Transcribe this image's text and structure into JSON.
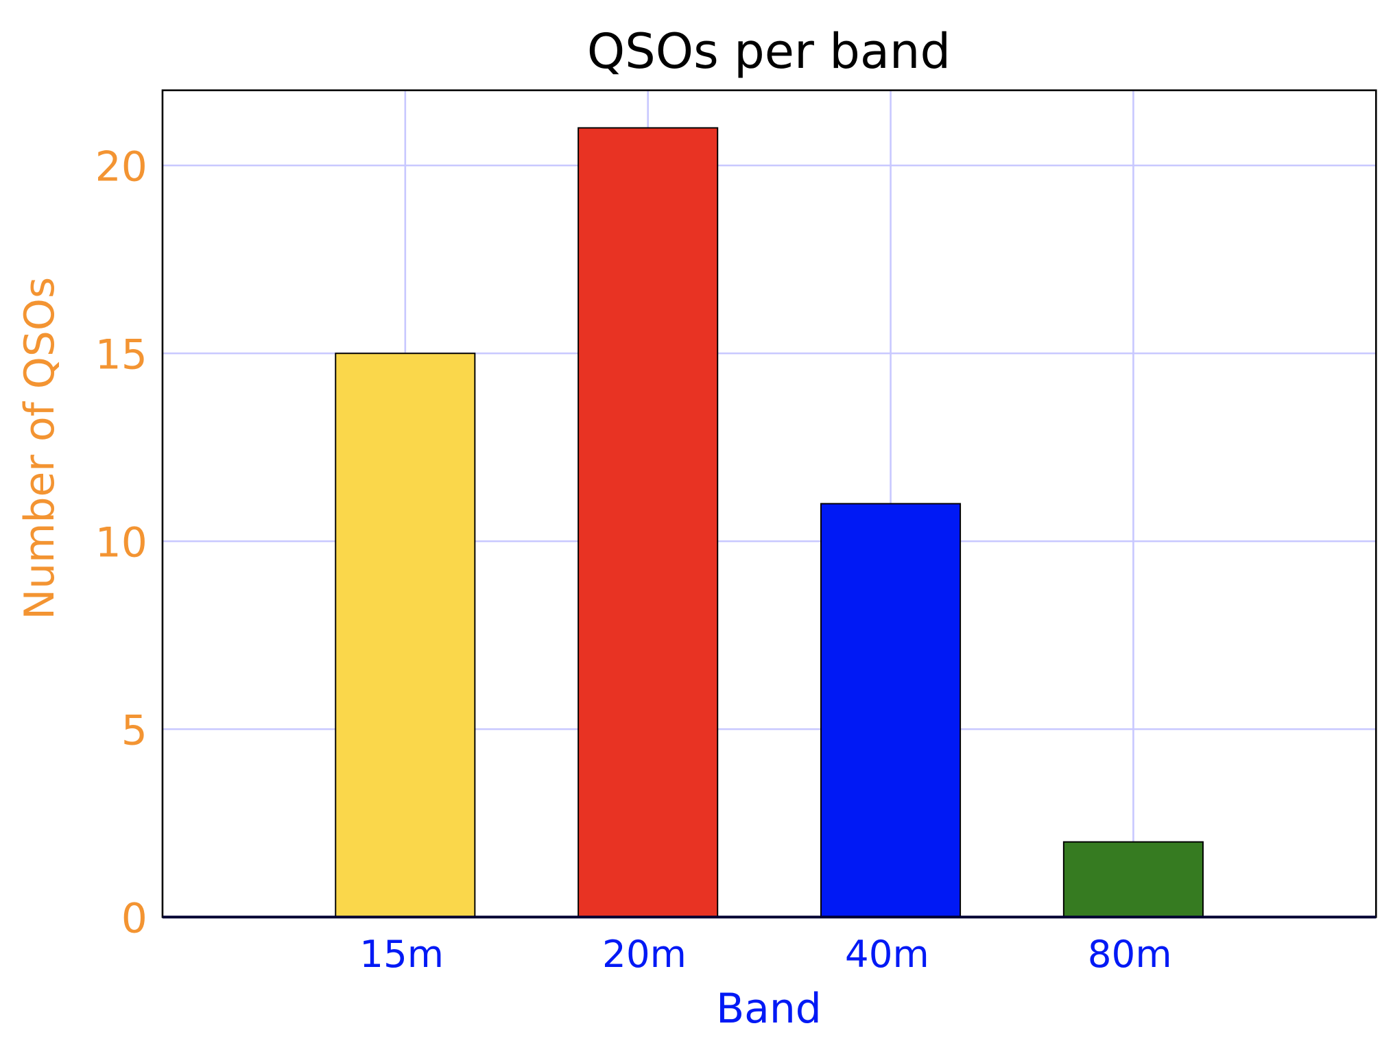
{
  "chart_data": {
    "type": "bar",
    "title": "QSOs per band",
    "xlabel": "Band",
    "ylabel": "Number of QSOs",
    "categories": [
      "15m",
      "20m",
      "40m",
      "80m"
    ],
    "values": [
      15,
      21,
      11,
      2
    ],
    "bar_colors": [
      "#fad74b",
      "#e83323",
      "#0019f5",
      "#367b21"
    ],
    "ylim": [
      0,
      22
    ],
    "yticks": [
      0,
      5,
      10,
      15,
      20
    ],
    "grid": true,
    "grid_color": "#c8c8ff",
    "ytick_color": "#f39432",
    "xtick_color": "#0019f5",
    "legend": "none"
  }
}
